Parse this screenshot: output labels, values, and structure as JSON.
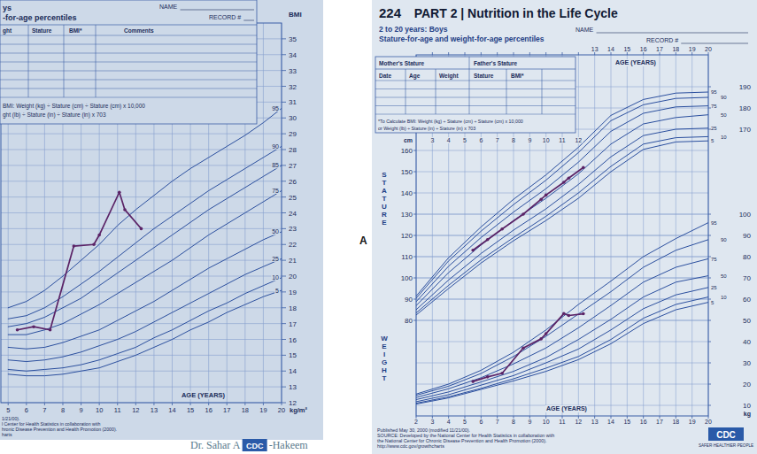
{
  "footer": {
    "text_left": "Dr. Sahar A",
    "logo": "CDC",
    "text_right": "-Hakeem"
  },
  "chart_data": [
    {
      "type": "line",
      "title": "ys",
      "subtitle": "-for-age percentiles",
      "name_label": "NAME",
      "record_label": "RECORD #",
      "table_headers": [
        "ght",
        "Stature",
        "BMI*",
        "Comments"
      ],
      "formula": [
        "BMI: Weight (kg) ÷ Stature (cm) ÷ Stature (cm) x 10,000",
        "ght (lb) ÷ Stature (in) ÷ Stature (in) x 703"
      ],
      "source": [
        "1/21/00).",
        "l Center for Health Statistics in collaboration with",
        "hronic Disease Prevention and Health Promotion (2000).",
        "harts"
      ],
      "x_label": "AGE (YEARS)",
      "y_label": "BMI",
      "y_unit": "kg/m²",
      "grid": true,
      "x": [
        5,
        6,
        7,
        8,
        9,
        10,
        11,
        12,
        13,
        14,
        15,
        16,
        17,
        18,
        19,
        20
      ],
      "xlim": [
        4.6,
        20
      ],
      "xticks": [
        5,
        6,
        7,
        8,
        9,
        10,
        11,
        12,
        13,
        14,
        15,
        16,
        17,
        18,
        19,
        20
      ],
      "ylim": [
        12,
        36
      ],
      "yticks": [
        12,
        13,
        14,
        15,
        16,
        17,
        18,
        19,
        20,
        21,
        22,
        23,
        24,
        25,
        26,
        27,
        28,
        29,
        30,
        31,
        32,
        33,
        34,
        35
      ],
      "series": [
        {
          "name": "95",
          "color": "#2b4f9e",
          "values": [
            18.0,
            18.4,
            19.1,
            20.0,
            21.0,
            22.0,
            23.2,
            24.2,
            25.1,
            26.0,
            26.8,
            27.5,
            28.2,
            28.9,
            29.7,
            30.6
          ]
        },
        {
          "name": "90",
          "color": "#2b4f9e",
          "values": [
            17.3,
            17.5,
            18.0,
            18.7,
            19.5,
            20.3,
            21.2,
            22.1,
            23.0,
            23.8,
            24.6,
            25.4,
            26.1,
            26.8,
            27.5,
            28.2
          ]
        },
        {
          "name": "85",
          "color": "#2b4f9e",
          "values": [
            16.8,
            17.0,
            17.4,
            18.0,
            18.6,
            19.4,
            20.2,
            21.0,
            21.8,
            22.6,
            23.4,
            24.2,
            24.9,
            25.6,
            26.3,
            27.0
          ]
        },
        {
          "name": "75",
          "color": "#2b4f9e",
          "values": [
            16.3,
            16.3,
            16.6,
            17.0,
            17.6,
            18.2,
            18.9,
            19.6,
            20.3,
            21.0,
            21.8,
            22.6,
            23.3,
            24.0,
            24.7,
            25.4
          ]
        },
        {
          "name": "50",
          "color": "#2b4f9e",
          "values": [
            15.5,
            15.4,
            15.5,
            15.8,
            16.2,
            16.6,
            17.2,
            17.8,
            18.4,
            19.1,
            19.8,
            20.5,
            21.1,
            21.7,
            22.3,
            22.8
          ]
        },
        {
          "name": "25",
          "color": "#2b4f9e",
          "values": [
            14.7,
            14.6,
            14.7,
            14.9,
            15.2,
            15.6,
            16.0,
            16.5,
            17.1,
            17.7,
            18.3,
            18.9,
            19.5,
            20.1,
            20.6,
            21.1
          ]
        },
        {
          "name": "10",
          "color": "#2b4f9e",
          "values": [
            14.1,
            14.0,
            14.1,
            14.2,
            14.4,
            14.7,
            15.1,
            15.5,
            16.1,
            16.6,
            17.2,
            17.8,
            18.3,
            18.9,
            19.4,
            19.9
          ]
        },
        {
          "name": "5",
          "color": "#2b4f9e",
          "values": [
            13.8,
            13.7,
            13.7,
            13.8,
            14.0,
            14.2,
            14.6,
            15.0,
            15.5,
            16.0,
            16.6,
            17.1,
            17.7,
            18.2,
            18.7,
            19.1
          ]
        },
        {
          "color": "#5b2366",
          "marker": "circle",
          "x": [
            5.5,
            6.4,
            7.3,
            8.6,
            9.7,
            10.0,
            11.1,
            11.4,
            12.3
          ],
          "values": [
            16.6,
            16.8,
            16.6,
            21.9,
            22.0,
            22.6,
            25.3,
            24.2,
            23.0
          ]
        }
      ]
    },
    {
      "type": "line",
      "page_number": "224",
      "title": "PART 2 | Nutrition in the Life Cycle",
      "subtitle": "2 to 20 years: Boys",
      "chart_name": "Stature-for-age and weight-for-age percentiles",
      "name_label": "NAME",
      "record_label": "RECORD #",
      "table_top_headers": [
        "Mother's Stature",
        "Father's Stature"
      ],
      "table_headers": [
        "Date",
        "Age",
        "Weight",
        "Stature",
        "BMI*"
      ],
      "formula": [
        "*To Calculate BMI: Weight (kg) ÷ Stature (cm) ÷ Stature (cm) x 10,000",
        "or Weight (lb) ÷ Stature (in) ÷ Stature (in) x 703"
      ],
      "source": [
        "Published May 30, 2000 (modified 11/21/00).",
        "SOURCE: Developed by the National Center for Health Statistics in collaboration with",
        "the National Center for Chronic Disease Prevention and Health Promotion (2000).",
        "http://www.cdc.gov/growthcharts"
      ],
      "logo": "CDC",
      "logo_tagline": "SAFER·HEALTHIER·PEOPLE",
      "panel_label": "A",
      "x_label": "AGE (YEARS)",
      "x2_label": "AGE (YEARS)",
      "y_label": "cm",
      "y2_label": "kg",
      "y_title": "STATURE",
      "y2_title": "WEIGHT",
      "grid": true,
      "x": [
        2,
        4,
        6,
        8,
        10,
        12,
        14,
        16,
        18,
        20
      ],
      "xlim": [
        2,
        20
      ],
      "xticks": [
        2,
        3,
        4,
        5,
        6,
        7,
        8,
        9,
        10,
        11,
        12,
        13,
        14,
        15,
        16,
        17,
        18,
        19,
        20
      ],
      "x2ticks": [
        3,
        4,
        5,
        6,
        7,
        8,
        9,
        10,
        11,
        12,
        13,
        14,
        15,
        16,
        17,
        18,
        19,
        20
      ],
      "ylim": [
        35,
        205
      ],
      "yticks": [
        80,
        90,
        100,
        110,
        120,
        130,
        140,
        150,
        160,
        170,
        180,
        190
      ],
      "y2lim": [
        5,
        175
      ],
      "y2ticks": [
        10,
        20,
        30,
        40,
        50,
        60,
        70,
        80,
        90,
        100
      ],
      "series": [
        {
          "name": "95",
          "color": "#2b4f9e",
          "values": [
            91.4,
            109.5,
            124.0,
            137.0,
            148.5,
            161.5,
            176.5,
            184.0,
            187.0,
            187.5
          ]
        },
        {
          "name": "90",
          "color": "#2b4f9e",
          "values": [
            90.4,
            108.0,
            122.0,
            134.5,
            146.0,
            159.0,
            174.0,
            181.5,
            184.5,
            185.0
          ]
        },
        {
          "name": "75",
          "color": "#2b4f9e",
          "values": [
            88.8,
            105.5,
            119.0,
            131.0,
            142.0,
            154.5,
            169.0,
            177.5,
            180.5,
            181.0
          ]
        },
        {
          "name": "50",
          "color": "#2b4f9e",
          "values": [
            86.9,
            102.5,
            115.5,
            127.0,
            137.5,
            149.0,
            163.0,
            172.5,
            175.5,
            176.8
          ]
        },
        {
          "name": "25",
          "color": "#2b4f9e",
          "values": [
            85.0,
            99.0,
            111.5,
            122.5,
            132.5,
            144.0,
            157.0,
            167.0,
            170.0,
            170.5
          ]
        },
        {
          "name": "10",
          "color": "#2b4f9e",
          "values": [
            83.5,
            96.5,
            108.5,
            119.0,
            129.0,
            140.0,
            152.5,
            163.0,
            166.0,
            166.5
          ]
        },
        {
          "name": "5",
          "color": "#2b4f9e",
          "values": [
            82.5,
            95.0,
            107.0,
            117.5,
            127.0,
            137.5,
            150.0,
            160.5,
            164.0,
            164.5
          ]
        },
        {
          "name": "95",
          "color": "#2b4f9e",
          "axis": "y2",
          "values": [
            15.3,
            20.0,
            26.5,
            35.0,
            45.5,
            57.5,
            68.5,
            80.0,
            88.5,
            96.0
          ]
        },
        {
          "name": "90",
          "color": "#2b4f9e",
          "axis": "y2",
          "values": [
            14.7,
            19.0,
            25.0,
            33.0,
            42.5,
            53.0,
            63.5,
            75.0,
            83.0,
            88.0
          ]
        },
        {
          "name": "75",
          "color": "#2b4f9e",
          "axis": "y2",
          "values": [
            13.7,
            17.8,
            23.0,
            29.5,
            37.0,
            46.5,
            57.0,
            68.0,
            75.0,
            79.0
          ]
        },
        {
          "name": "50",
          "color": "#2b4f9e",
          "axis": "y2",
          "values": [
            12.7,
            16.3,
            21.0,
            26.0,
            32.5,
            41.0,
            50.5,
            61.0,
            68.0,
            71.0
          ]
        },
        {
          "name": "25",
          "color": "#2b4f9e",
          "axis": "y2",
          "values": [
            11.7,
            15.0,
            19.5,
            24.0,
            30.0,
            36.5,
            45.5,
            55.5,
            62.0,
            65.5
          ]
        },
        {
          "name": "10",
          "color": "#2b4f9e",
          "axis": "y2",
          "values": [
            11.0,
            14.0,
            18.0,
            22.5,
            27.5,
            33.0,
            41.0,
            51.0,
            57.5,
            61.0
          ]
        },
        {
          "name": "5",
          "color": "#2b4f9e",
          "axis": "y2",
          "values": [
            10.6,
            13.5,
            17.5,
            21.5,
            26.0,
            31.5,
            39.0,
            48.5,
            55.0,
            58.5
          ]
        },
        {
          "color": "#5b2366",
          "marker": "circle",
          "x": [
            5.5,
            6.4,
            7.3,
            8.6,
            9.7,
            10.0,
            11.1,
            11.4,
            12.3
          ],
          "values": [
            113,
            118,
            123,
            130,
            137,
            139,
            145,
            147,
            152
          ]
        },
        {
          "color": "#5b2366",
          "marker": "circle",
          "axis": "y2",
          "x": [
            5.5,
            6.4,
            7.3,
            8.6,
            9.7,
            10.0,
            11.1,
            11.4,
            12.3
          ],
          "values": [
            21.2,
            23.4,
            25.1,
            37.0,
            41.3,
            43.7,
            53.2,
            52.3,
            53.1
          ]
        }
      ]
    }
  ]
}
